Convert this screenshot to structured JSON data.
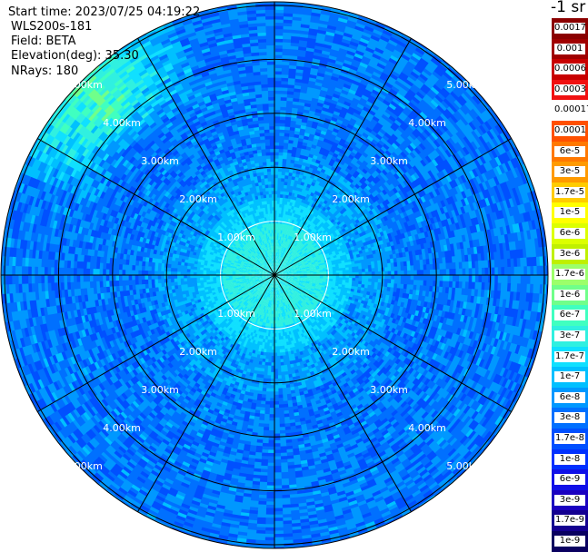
{
  "header": {
    "start_time": "Start time: 2023/07/25 04:19:22",
    "instrument": "WLS200s-181",
    "field": "Field: BETA",
    "elevation": "Elevation(deg): 35.30",
    "nrays": "NRays: 180"
  },
  "units": "-1 sr",
  "chart_data": {
    "type": "heatmap",
    "projection": "polar-ppi",
    "field": "BETA",
    "elevation_deg": 35.3,
    "n_rays": 180,
    "max_range_km": 5.0,
    "range_rings_km": [
      1,
      2,
      3,
      4,
      5
    ],
    "ring_labels": [
      "1.00km",
      "2.00km",
      "3.00km",
      "4.00km",
      "5.00km"
    ],
    "spoke_angles_deg": [
      0,
      30,
      60,
      90,
      120,
      150,
      180,
      210,
      240,
      270,
      300,
      330
    ],
    "near_range_values": "~1e-7 to 1.7e-7 within 1 km",
    "far_range_values": "~6e-9 to 6e-8 beyond 1.5 km",
    "plume_sector": "north-west, 4-5 km, ~1e-6 to 3e-6",
    "colorbar": {
      "labels": [
        "0.0017",
        "0.001",
        "0.0006",
        "0.0003",
        "0.00017",
        "0.0001",
        "6e-5",
        "3e-5",
        "1.7e-5",
        "1e-5",
        "6e-6",
        "3e-6",
        "1.7e-6",
        "1e-6",
        "6e-7",
        "3e-7",
        "1.7e-7",
        "1e-7",
        "6e-8",
        "3e-8",
        "1.7e-8",
        "1e-8",
        "6e-9",
        "3e-9",
        "1.7e-9",
        "1e-9"
      ],
      "colors": [
        "#8b0000",
        "#a00000",
        "#c80000",
        "#f01010",
        "#ffffff",
        "#ff5000",
        "#ff7800",
        "#ff9a00",
        "#ffcc00",
        "#ffff00",
        "#dcff00",
        "#bff000",
        "#9cff6a",
        "#70ff8a",
        "#40ffc0",
        "#30f0e0",
        "#10e0ff",
        "#00c0ff",
        "#0098ff",
        "#0070ff",
        "#0050ff",
        "#0030ff",
        "#1010e8",
        "#1a00c0",
        "#140090",
        "#0a0060"
      ]
    }
  }
}
